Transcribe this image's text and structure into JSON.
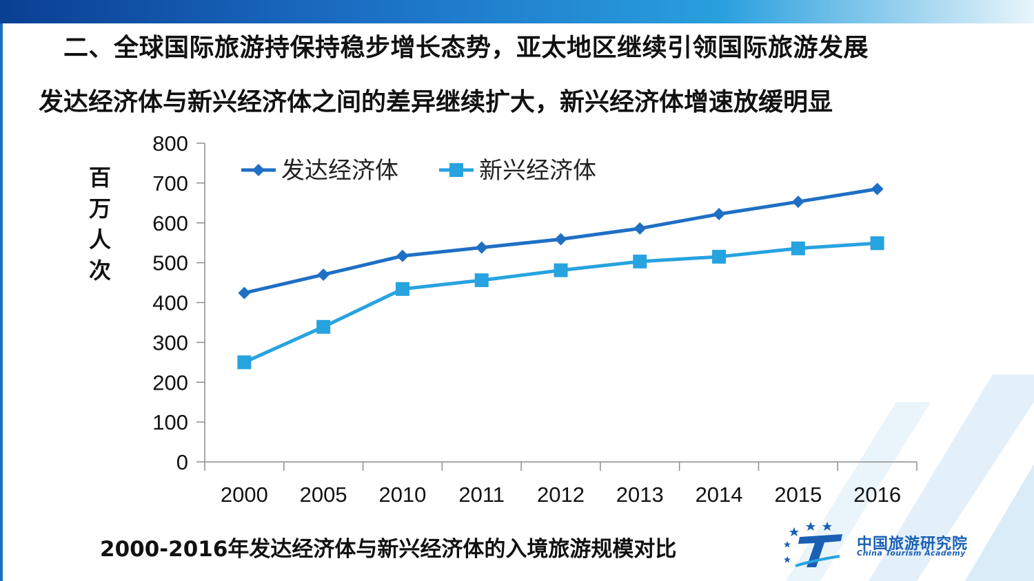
{
  "slide": {
    "heading": "二、全球国际旅游持保持稳步增长态势，亚太地区继续引领国际旅游发展",
    "subheading": "发达经济体与新兴经济体之间的差异继续扩大，新兴经济体增速放缓明显",
    "caption": "2000-2016年发达经济体与新兴经济体的入境旅游规模对比"
  },
  "logo": {
    "name_cn": "中国旅游研究院",
    "name_en": "China Tourism Academy",
    "mark": "T"
  },
  "chart_data": {
    "type": "line",
    "title": "",
    "ylabel": "百万人次",
    "xlabel": "",
    "categories": [
      "2000",
      "2005",
      "2010",
      "2011",
      "2012",
      "2013",
      "2014",
      "2015",
      "2016"
    ],
    "ylim": [
      0,
      800
    ],
    "yticks": [
      0,
      100,
      200,
      300,
      400,
      500,
      600,
      700,
      800
    ],
    "grid": false,
    "legend_position": "top-left",
    "series": [
      {
        "name": "发达经济体",
        "marker": "diamond",
        "color": "#1f6fc5",
        "values": [
          424,
          470,
          517,
          538,
          559,
          586,
          622,
          653,
          685
        ]
      },
      {
        "name": "新兴经济体",
        "marker": "square",
        "color": "#27a3df",
        "values": [
          250,
          339,
          434,
          456,
          481,
          503,
          515,
          536,
          549
        ]
      }
    ]
  }
}
